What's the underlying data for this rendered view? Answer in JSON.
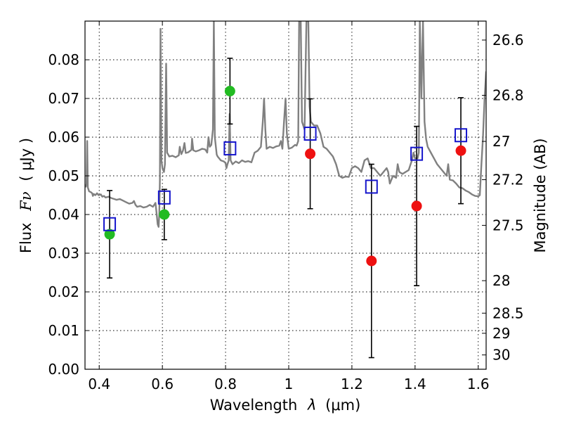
{
  "chart_data": {
    "type": "scatter",
    "title": "",
    "xlabel": {
      "main": "Wavelength",
      "lambda": "λ",
      "unit": "(μm)"
    },
    "ylabel": {
      "main": "Flux",
      "fnu": "Fν",
      "unit": "( μJy )"
    },
    "y2label": "Magnitude (AB)",
    "xlim": [
      0.355,
      1.625
    ],
    "ylim": [
      0.0,
      0.09
    ],
    "x_ticks": [
      0.4,
      0.6,
      0.8,
      1.0,
      1.2,
      1.4,
      1.6
    ],
    "x_tick_labels": [
      "0.4",
      "0.6",
      "0.8",
      "1",
      "1.2",
      "1.4",
      "1.6"
    ],
    "y_ticks": [
      0.0,
      0.01,
      0.02,
      0.03,
      0.04,
      0.05,
      0.06,
      0.07,
      0.08
    ],
    "y_tick_labels": [
      "0.00",
      "0.01",
      "0.02",
      "0.03",
      "0.04",
      "0.05",
      "0.06",
      "0.07",
      "0.08"
    ],
    "y2_ticks": [
      {
        "flux": 0.0851,
        "label": "26.6"
      },
      {
        "flux": 0.0708,
        "label": "26.8"
      },
      {
        "flux": 0.0589,
        "label": "27"
      },
      {
        "flux": 0.049,
        "label": "27.2"
      },
      {
        "flux": 0.0372,
        "label": "27.5"
      },
      {
        "flux": 0.0229,
        "label": "28"
      },
      {
        "flux": 0.0145,
        "label": "28.5"
      },
      {
        "flux": 0.0093,
        "label": "29"
      },
      {
        "flux": 0.0037,
        "label": "30"
      }
    ],
    "grid": true,
    "series": [
      {
        "kind": "line",
        "color": "#808080",
        "points": [
          [
            0.355,
            0.0477
          ],
          [
            0.358,
            0.0472
          ],
          [
            0.36,
            0.048
          ],
          [
            0.362,
            0.059
          ],
          [
            0.364,
            0.047
          ],
          [
            0.368,
            0.046
          ],
          [
            0.373,
            0.0458
          ],
          [
            0.378,
            0.0455
          ],
          [
            0.38,
            0.0448
          ],
          [
            0.383,
            0.0453
          ],
          [
            0.388,
            0.045
          ],
          [
            0.393,
            0.0455
          ],
          [
            0.398,
            0.045
          ],
          [
            0.405,
            0.0452
          ],
          [
            0.41,
            0.0446
          ],
          [
            0.415,
            0.0448
          ],
          [
            0.42,
            0.0444
          ],
          [
            0.43,
            0.0446
          ],
          [
            0.44,
            0.0442
          ],
          [
            0.448,
            0.044
          ],
          [
            0.455,
            0.0438
          ],
          [
            0.465,
            0.044
          ],
          [
            0.475,
            0.0436
          ],
          [
            0.485,
            0.0432
          ],
          [
            0.495,
            0.0428
          ],
          [
            0.505,
            0.043
          ],
          [
            0.51,
            0.0435
          ],
          [
            0.515,
            0.0425
          ],
          [
            0.52,
            0.042
          ],
          [
            0.53,
            0.0422
          ],
          [
            0.54,
            0.0418
          ],
          [
            0.55,
            0.042
          ],
          [
            0.56,
            0.0425
          ],
          [
            0.57,
            0.042
          ],
          [
            0.578,
            0.043
          ],
          [
            0.582,
            0.04
          ],
          [
            0.585,
            0.0375
          ],
          [
            0.588,
            0.0368
          ],
          [
            0.59,
            0.04
          ],
          [
            0.592,
            0.049
          ],
          [
            0.594,
            0.088
          ],
          [
            0.597,
            0.054
          ],
          [
            0.6,
            0.052
          ],
          [
            0.605,
            0.051
          ],
          [
            0.608,
            0.053
          ],
          [
            0.612,
            0.079
          ],
          [
            0.615,
            0.056
          ],
          [
            0.622,
            0.055
          ],
          [
            0.632,
            0.0552
          ],
          [
            0.642,
            0.0548
          ],
          [
            0.652,
            0.0553
          ],
          [
            0.655,
            0.0575
          ],
          [
            0.66,
            0.0556
          ],
          [
            0.665,
            0.0565
          ],
          [
            0.67,
            0.0585
          ],
          [
            0.674,
            0.0559
          ],
          [
            0.682,
            0.0561
          ],
          [
            0.692,
            0.0567
          ],
          [
            0.694,
            0.0596
          ],
          [
            0.698,
            0.0566
          ],
          [
            0.706,
            0.0563
          ],
          [
            0.716,
            0.0566
          ],
          [
            0.726,
            0.057
          ],
          [
            0.736,
            0.0568
          ],
          [
            0.742,
            0.056
          ],
          [
            0.746,
            0.06
          ],
          [
            0.75,
            0.0575
          ],
          [
            0.755,
            0.058
          ],
          [
            0.76,
            0.062
          ],
          [
            0.763,
            0.09
          ],
          [
            0.766,
            0.06
          ],
          [
            0.772,
            0.0555
          ],
          [
            0.775,
            0.055
          ],
          [
            0.785,
            0.054
          ],
          [
            0.795,
            0.0537
          ],
          [
            0.8,
            0.0533
          ],
          [
            0.803,
            0.052
          ],
          [
            0.806,
            0.053
          ],
          [
            0.81,
            0.054
          ],
          [
            0.813,
            0.066
          ],
          [
            0.816,
            0.054
          ],
          [
            0.822,
            0.053
          ],
          [
            0.832,
            0.0537
          ],
          [
            0.842,
            0.0533
          ],
          [
            0.852,
            0.054
          ],
          [
            0.862,
            0.0536
          ],
          [
            0.872,
            0.0538
          ],
          [
            0.882,
            0.0535
          ],
          [
            0.892,
            0.056
          ],
          [
            0.902,
            0.0565
          ],
          [
            0.912,
            0.0575
          ],
          [
            0.918,
            0.064
          ],
          [
            0.922,
            0.07
          ],
          [
            0.926,
            0.062
          ],
          [
            0.93,
            0.057
          ],
          [
            0.94,
            0.0575
          ],
          [
            0.95,
            0.0572
          ],
          [
            0.96,
            0.0576
          ],
          [
            0.97,
            0.0578
          ],
          [
            0.975,
            0.059
          ],
          [
            0.98,
            0.057
          ],
          [
            0.985,
            0.064
          ],
          [
            0.99,
            0.07
          ],
          [
            0.994,
            0.061
          ],
          [
            1.0,
            0.057
          ],
          [
            1.01,
            0.0573
          ],
          [
            1.02,
            0.058
          ],
          [
            1.025,
            0.0578
          ],
          [
            1.03,
            0.059
          ],
          [
            1.033,
            0.09
          ],
          [
            1.038,
            0.09
          ],
          [
            1.042,
            0.064
          ],
          [
            1.05,
            0.062
          ],
          [
            1.056,
            0.09
          ],
          [
            1.062,
            0.09
          ],
          [
            1.066,
            0.068
          ],
          [
            1.07,
            0.064
          ],
          [
            1.08,
            0.063
          ],
          [
            1.09,
            0.063
          ],
          [
            1.1,
            0.061
          ],
          [
            1.11,
            0.0575
          ],
          [
            1.12,
            0.057
          ],
          [
            1.13,
            0.056
          ],
          [
            1.14,
            0.055
          ],
          [
            1.15,
            0.053
          ],
          [
            1.16,
            0.05
          ],
          [
            1.17,
            0.0495
          ],
          [
            1.18,
            0.0498
          ],
          [
            1.19,
            0.0497
          ],
          [
            1.2,
            0.052
          ],
          [
            1.21,
            0.0525
          ],
          [
            1.22,
            0.052
          ],
          [
            1.23,
            0.051
          ],
          [
            1.24,
            0.054
          ],
          [
            1.25,
            0.0545
          ],
          [
            1.26,
            0.052
          ],
          [
            1.27,
            0.052
          ],
          [
            1.28,
            0.051
          ],
          [
            1.29,
            0.05
          ],
          [
            1.3,
            0.051
          ],
          [
            1.31,
            0.052
          ],
          [
            1.315,
            0.051
          ],
          [
            1.32,
            0.048
          ],
          [
            1.33,
            0.05
          ],
          [
            1.34,
            0.0495
          ],
          [
            1.345,
            0.053
          ],
          [
            1.35,
            0.051
          ],
          [
            1.36,
            0.0505
          ],
          [
            1.37,
            0.051
          ],
          [
            1.38,
            0.0515
          ],
          [
            1.39,
            0.054
          ],
          [
            1.395,
            0.056
          ],
          [
            1.4,
            0.0545
          ],
          [
            1.408,
            0.0545
          ],
          [
            1.412,
            0.056
          ],
          [
            1.415,
            0.09
          ],
          [
            1.42,
            0.07
          ],
          [
            1.425,
            0.09
          ],
          [
            1.43,
            0.064
          ],
          [
            1.435,
            0.0595
          ],
          [
            1.44,
            0.0575
          ],
          [
            1.45,
            0.056
          ],
          [
            1.46,
            0.0545
          ],
          [
            1.47,
            0.053
          ],
          [
            1.48,
            0.052
          ],
          [
            1.49,
            0.051
          ],
          [
            1.5,
            0.05
          ],
          [
            1.505,
            0.053
          ],
          [
            1.51,
            0.049
          ],
          [
            1.52,
            0.0488
          ],
          [
            1.53,
            0.048
          ],
          [
            1.54,
            0.047
          ],
          [
            1.55,
            0.0468
          ],
          [
            1.56,
            0.0462
          ],
          [
            1.57,
            0.0458
          ],
          [
            1.58,
            0.0452
          ],
          [
            1.59,
            0.0448
          ],
          [
            1.6,
            0.0447
          ],
          [
            1.605,
            0.045
          ],
          [
            1.61,
            0.053
          ],
          [
            1.615,
            0.06
          ],
          [
            1.62,
            0.07
          ],
          [
            1.625,
            0.077
          ]
        ]
      },
      {
        "kind": "points",
        "marker": "circle",
        "color": "#22bb22",
        "points": [
          {
            "x": 0.433,
            "y": 0.0349,
            "yerr": 0.0113
          },
          {
            "x": 0.606,
            "y": 0.04,
            "yerr": 0.0065
          },
          {
            "x": 0.814,
            "y": 0.0719,
            "yerr": 0.0085
          }
        ]
      },
      {
        "kind": "points",
        "marker": "circle",
        "color": "#ee1111",
        "points": [
          {
            "x": 1.068,
            "y": 0.0557,
            "yerr": 0.0142
          },
          {
            "x": 1.262,
            "y": 0.028,
            "yerr": 0.025
          },
          {
            "x": 1.405,
            "y": 0.0422,
            "yerr": 0.0206
          },
          {
            "x": 1.545,
            "y": 0.0565,
            "yerr": 0.0137
          }
        ]
      },
      {
        "kind": "points",
        "marker": "open-square",
        "color": "#1515cc",
        "points": [
          {
            "x": 0.433,
            "y": 0.0375
          },
          {
            "x": 0.606,
            "y": 0.0444
          },
          {
            "x": 0.814,
            "y": 0.0571
          },
          {
            "x": 1.068,
            "y": 0.0609
          },
          {
            "x": 1.262,
            "y": 0.0472
          },
          {
            "x": 1.405,
            "y": 0.0557
          },
          {
            "x": 1.545,
            "y": 0.0605
          }
        ]
      }
    ]
  }
}
